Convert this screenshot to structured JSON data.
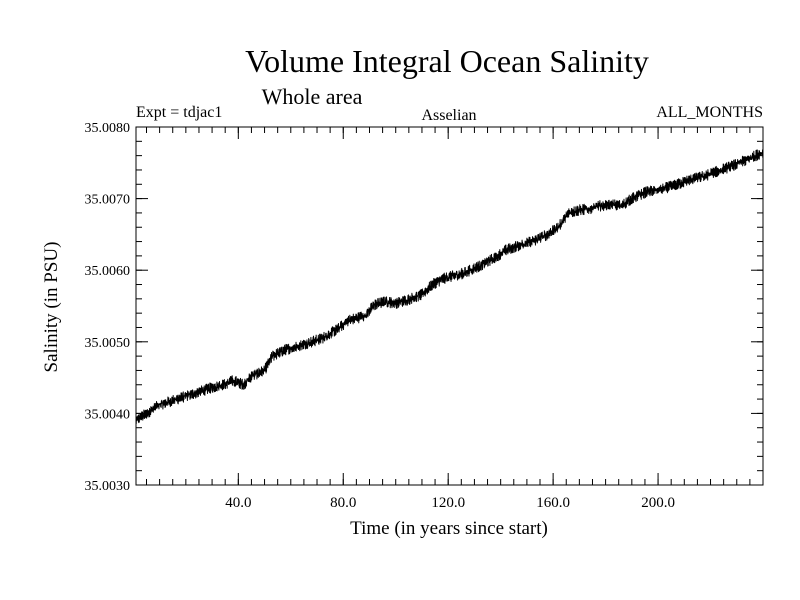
{
  "chart_data": {
    "type": "line",
    "title": "Volume Integral Ocean Salinity",
    "subtitle": "Whole area",
    "experiment_label": "Expt = tdjac1",
    "method_label": "Asselian",
    "months_label": "ALL_MONTHS",
    "xlabel": "Time (in years since start)",
    "ylabel": "Salinity (in PSU)",
    "xlim": [
      1,
      240
    ],
    "ylim": [
      35.003,
      35.008
    ],
    "xticks": [
      40,
      80,
      120,
      160,
      200
    ],
    "xtick_labels": [
      "40.0",
      "80.0",
      "120.0",
      "160.0",
      "200.0"
    ],
    "yticks": [
      35.003,
      35.004,
      35.005,
      35.006,
      35.007,
      35.008
    ],
    "ytick_labels": [
      "35.0030",
      "35.0040",
      "35.0050",
      "35.0060",
      "35.0070",
      "35.0080"
    ],
    "x_minor_step": 5,
    "y_minor_step": 0.0002,
    "line_color": "#000000",
    "noise_band_psu": 0.0001,
    "series": [
      {
        "name": "salinity",
        "x": [
          1,
          5,
          10,
          15,
          20,
          25,
          30,
          35,
          38,
          42,
          45,
          50,
          53,
          58,
          63,
          68,
          72,
          78,
          82,
          88,
          92,
          96,
          100,
          104,
          110,
          114,
          118,
          122,
          126,
          132,
          138,
          142,
          148,
          152,
          158,
          162,
          166,
          170,
          174,
          178,
          182,
          186,
          190,
          196,
          200,
          206,
          212,
          218,
          224,
          230,
          236,
          240
        ],
        "values": [
          35.0039,
          35.004,
          35.00412,
          35.00418,
          35.00424,
          35.0043,
          35.00436,
          35.00441,
          35.00446,
          35.0044,
          35.00452,
          35.0046,
          35.0048,
          35.00489,
          35.00494,
          35.005,
          35.00505,
          35.00518,
          35.0053,
          35.00536,
          35.00552,
          35.00556,
          35.00554,
          35.00558,
          35.00566,
          35.0058,
          35.00588,
          35.00592,
          35.00596,
          35.00606,
          35.00618,
          35.00628,
          35.00636,
          35.0064,
          35.0065,
          35.0066,
          35.0068,
          35.00684,
          35.00686,
          35.0069,
          35.00692,
          35.0069,
          35.007,
          35.0071,
          35.00712,
          35.00718,
          35.00726,
          35.00732,
          35.0074,
          35.00748,
          35.00758,
          35.00765
        ]
      }
    ]
  }
}
